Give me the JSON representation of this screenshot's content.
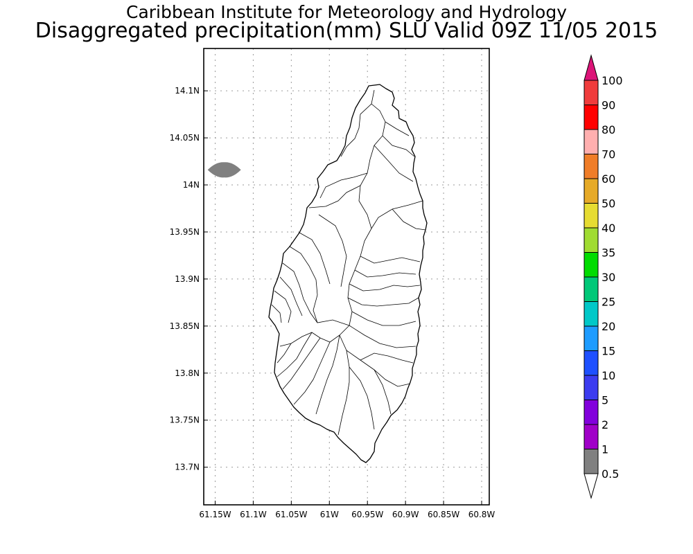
{
  "header": {
    "institution": "Caribbean Institute for Meteorology and Hydrology",
    "product": "Disaggregated precipitation(mm) SLU Valid 09Z 11/05 2015"
  },
  "map": {
    "lat_ticks": [
      {
        "value": 14.1,
        "label": "14.1N"
      },
      {
        "value": 14.05,
        "label": "14.05N"
      },
      {
        "value": 14.0,
        "label": "14N"
      },
      {
        "value": 13.95,
        "label": "13.95N"
      },
      {
        "value": 13.9,
        "label": "13.9N"
      },
      {
        "value": 13.85,
        "label": "13.85N"
      },
      {
        "value": 13.8,
        "label": "13.8N"
      },
      {
        "value": 13.75,
        "label": "13.75N"
      },
      {
        "value": 13.7,
        "label": "13.7N"
      }
    ],
    "lon_ticks": [
      {
        "value": -61.15,
        "label": "61.15W"
      },
      {
        "value": -61.1,
        "label": "61.1W"
      },
      {
        "value": -61.05,
        "label": "61.05W"
      },
      {
        "value": -61.0,
        "label": "61W"
      },
      {
        "value": -60.95,
        "label": "60.95W"
      },
      {
        "value": -60.9,
        "label": "60.9W"
      },
      {
        "value": -60.85,
        "label": "60.85W"
      },
      {
        "value": -60.8,
        "label": "60.8W"
      }
    ],
    "lat_range": [
      13.66,
      14.145
    ],
    "lon_range": [
      -61.165,
      -60.79
    ],
    "grid": true,
    "precip_areas": [
      {
        "lon": -61.138,
        "lat": 14.016,
        "class": "0.5-1",
        "color": "#808080"
      }
    ]
  },
  "colorbar": {
    "labels": [
      "100",
      "90",
      "80",
      "70",
      "60",
      "50",
      "40",
      "35",
      "30",
      "25",
      "20",
      "15",
      "10",
      "5",
      "2",
      "1",
      "0.5"
    ],
    "colors": [
      "#dc1478",
      "#f03c3c",
      "#ff0000",
      "#ffafaf",
      "#f07d28",
      "#e6aa28",
      "#e6dc32",
      "#a0dc32",
      "#00dc00",
      "#00c878",
      "#00c8c8",
      "#1e9cff",
      "#1e50ff",
      "#3c3cf0",
      "#8200dc",
      "#a000c8",
      "#808080",
      "#ffffff"
    ]
  }
}
